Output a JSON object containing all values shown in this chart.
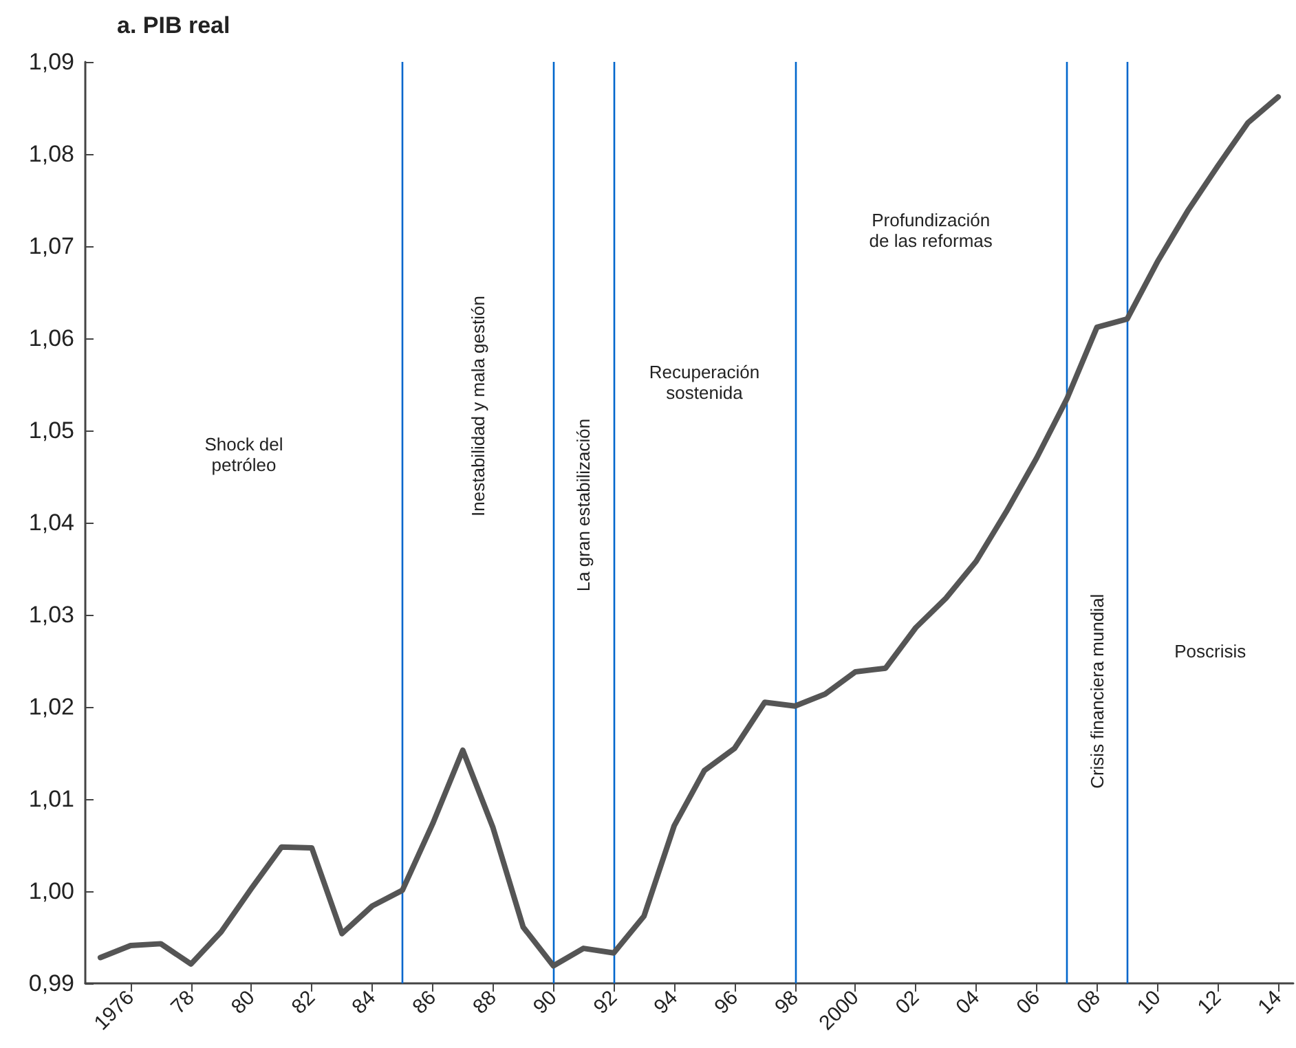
{
  "chart_data": {
    "type": "line",
    "title": "a. PIB real",
    "x": [
      1975,
      1976,
      1977,
      1978,
      1979,
      1980,
      1981,
      1982,
      1983,
      1984,
      1985,
      1986,
      1987,
      1988,
      1989,
      1990,
      1991,
      1992,
      1993,
      1994,
      1995,
      1996,
      1997,
      1998,
      1999,
      2000,
      2001,
      2002,
      2003,
      2004,
      2005,
      2006,
      2007,
      2008,
      2009,
      2010,
      2011,
      2012,
      2013,
      2014
    ],
    "series": [
      {
        "color": "#555555",
        "values": [
          0.9928,
          0.9941,
          0.9943,
          0.9921,
          0.9956,
          1.0003,
          1.0048,
          1.0047,
          0.9954,
          0.9984,
          1.0001,
          1.0073,
          1.0153,
          1.0069,
          0.9961,
          0.9919,
          0.9938,
          0.9933,
          0.9973,
          1.0071,
          1.0131,
          1.0155,
          1.0205,
          1.0201,
          1.0214,
          1.0238,
          1.0242,
          1.0286,
          1.0318,
          1.0358,
          1.0412,
          1.047,
          1.0534,
          1.0612,
          1.0621,
          1.0683,
          1.0738,
          1.0787,
          1.0834,
          1.0862
        ]
      }
    ],
    "xlim": [
      1974.5,
      2014.5
    ],
    "xticks": [
      {
        "value": 1976,
        "label": "1976"
      },
      {
        "value": 1978,
        "label": "78"
      },
      {
        "value": 1980,
        "label": "80"
      },
      {
        "value": 1982,
        "label": "82"
      },
      {
        "value": 1984,
        "label": "84"
      },
      {
        "value": 1986,
        "label": "86"
      },
      {
        "value": 1988,
        "label": "88"
      },
      {
        "value": 1990,
        "label": "90"
      },
      {
        "value": 1992,
        "label": "92"
      },
      {
        "value": 1994,
        "label": "94"
      },
      {
        "value": 1996,
        "label": "96"
      },
      {
        "value": 1998,
        "label": "98"
      },
      {
        "value": 2000,
        "label": "2000"
      },
      {
        "value": 2002,
        "label": "02"
      },
      {
        "value": 2004,
        "label": "04"
      },
      {
        "value": 2006,
        "label": "06"
      },
      {
        "value": 2008,
        "label": "08"
      },
      {
        "value": 2010,
        "label": "10"
      },
      {
        "value": 2012,
        "label": "12"
      },
      {
        "value": 2014,
        "label": "14"
      }
    ],
    "ylim": [
      0.99,
      1.09
    ],
    "yticks": [
      {
        "value": 0.99,
        "label": "0,99"
      },
      {
        "value": 1.0,
        "label": "1,00"
      },
      {
        "value": 1.01,
        "label": "1,01"
      },
      {
        "value": 1.02,
        "label": "1,02"
      },
      {
        "value": 1.03,
        "label": "1,03"
      },
      {
        "value": 1.04,
        "label": "1,04"
      },
      {
        "value": 1.05,
        "label": "1,05"
      },
      {
        "value": 1.06,
        "label": "1,06"
      },
      {
        "value": 1.07,
        "label": "1,07"
      },
      {
        "value": 1.08,
        "label": "1,08"
      },
      {
        "value": 1.09,
        "label": "1,09"
      }
    ],
    "ref_lines": [
      {
        "axis": "x",
        "value": 1985,
        "color": "#0066cc"
      },
      {
        "axis": "x",
        "value": 1990,
        "color": "#0066cc"
      },
      {
        "axis": "x",
        "value": 1992,
        "color": "#0066cc"
      },
      {
        "axis": "x",
        "value": 1998,
        "color": "#0066cc"
      },
      {
        "axis": "x",
        "value": 2007,
        "color": "#0066cc"
      },
      {
        "axis": "x",
        "value": 2009,
        "color": "#0066cc"
      }
    ],
    "annotations": [
      "Shock del\npetróleo",
      "Inestabilidad y mala gestión",
      "La gran estabilización",
      "Recuperación\nsostenida",
      "Profundización\nde las reformas",
      "Crisis financiera mundial",
      "Poscrisis"
    ],
    "grid": false,
    "marker": "none",
    "line_style": "solid"
  }
}
